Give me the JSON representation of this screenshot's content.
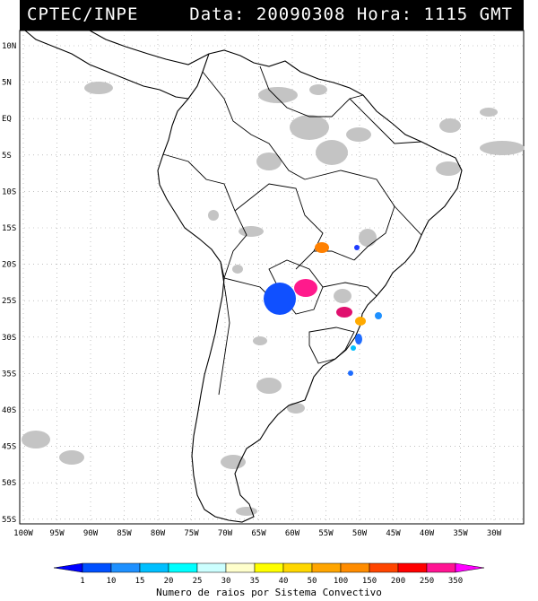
{
  "header": {
    "agency": "CPTEC/INPE",
    "stamp": "Data: 20090308 Hora: 1115 GMT"
  },
  "axes": {
    "lat_labels": [
      "10N",
      "5N",
      "EQ",
      "5S",
      "10S",
      "15S",
      "20S",
      "25S",
      "30S",
      "35S",
      "40S",
      "45S",
      "50S",
      "55S"
    ],
    "lon_labels": [
      "100W",
      "95W",
      "90W",
      "85W",
      "80W",
      "75W",
      "70W",
      "65W",
      "60W",
      "55W",
      "50W",
      "45W",
      "40W",
      "35W",
      "30W"
    ]
  },
  "colorbar": {
    "ticks": [
      "1",
      "10",
      "15",
      "20",
      "25",
      "30",
      "35",
      "40",
      "50",
      "100",
      "150",
      "200",
      "250",
      "350"
    ],
    "colors": [
      "#0000ff",
      "#0050ff",
      "#1e90ff",
      "#00bfff",
      "#00ffff",
      "#ccffff",
      "#ffffcc",
      "#ffff00",
      "#ffd700",
      "#ffa500",
      "#ff8c00",
      "#ff4500",
      "#ff0000",
      "#ff1493",
      "#ff00ff"
    ],
    "caption": "Numero de raios por Sistema Convectivo"
  },
  "map_colors": {
    "land_outline": "#000000",
    "cloud": "#bfbfbf",
    "grid": "#999999"
  }
}
